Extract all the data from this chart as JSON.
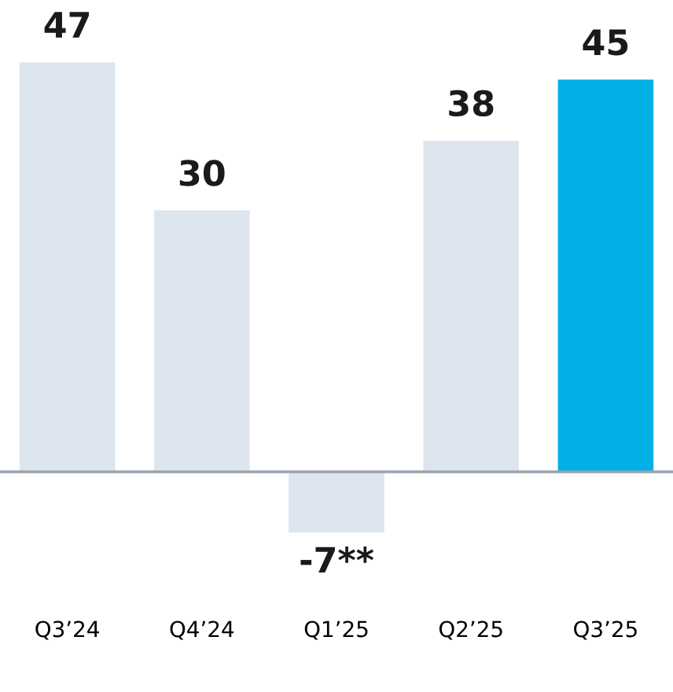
{
  "chart_data": {
    "type": "bar",
    "categories": [
      "Q3’24",
      "Q4’24",
      "Q1’25",
      "Q2’25",
      "Q3’25"
    ],
    "values": [
      47,
      30,
      -7,
      38,
      45
    ],
    "colors": [
      "#dde5ef",
      "#dde5ef",
      "#dde5ef",
      "#dde5ef",
      "#00b0e6"
    ],
    "value_labels": [
      "47",
      "30",
      "-7**",
      "38",
      "45"
    ],
    "grid": false,
    "legend": false
  }
}
